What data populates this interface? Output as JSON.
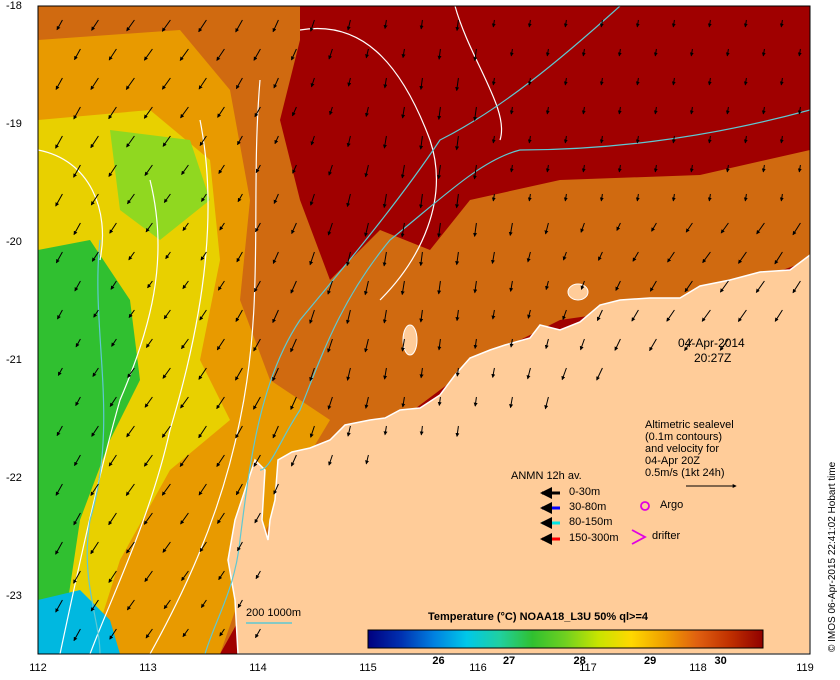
{
  "axes": {
    "lat_ticks": [
      "-18",
      "-19",
      "-20",
      "-21",
      "-22",
      "-23"
    ],
    "lon_ticks": [
      "112",
      "113",
      "114",
      "115",
      "116",
      "117",
      "118",
      "119"
    ],
    "lat_range": [
      -23.5,
      -18.0
    ],
    "lon_range": [
      112,
      119
    ]
  },
  "timestamp": {
    "date": "04-Apr-2014",
    "time": "20:27Z"
  },
  "altimetry_legend": {
    "lines": [
      "Altimetric sealevel",
      "(0.1m contours)",
      "and velocity for",
      "04-Apr 20Z",
      "0.5m/s (1kt 24h)"
    ]
  },
  "anmn_legend": {
    "title": "ANMN 12h av.",
    "entries": [
      {
        "label": "0-30m",
        "color": "#000000"
      },
      {
        "label": "30-80m",
        "color": "#0000ff"
      },
      {
        "label": "80-150m",
        "color": "#00e5e5"
      },
      {
        "label": "150-300m",
        "color": "#ff0000"
      }
    ]
  },
  "markers": {
    "argo": "Argo",
    "drifter": "drifter",
    "marker_color": "#e100e1"
  },
  "bathymetry_legend": {
    "label": "200  1000m",
    "color": "#5fc8d2"
  },
  "colorbar": {
    "title": "Temperature (°C) NOAA18_L3U 50% ql>=4",
    "ticks": [
      "26",
      "27",
      "28",
      "29",
      "30"
    ],
    "range": [
      25.0,
      30.6
    ],
    "colors": [
      "#00007f",
      "#0030b0",
      "#0080e0",
      "#00c8e8",
      "#20d0a0",
      "#30c030",
      "#70d020",
      "#c8e400",
      "#ffd800",
      "#f0a000",
      "#e06010",
      "#c03000",
      "#900000"
    ]
  },
  "credit": "© IMOS 06-Apr-2015 22:41:02 Hobart time",
  "colors": {
    "land": "#ffcc99",
    "hot_water": "#a00000",
    "bathy_contour": "#5fc8d2",
    "sealevel_contour": "#ffffff"
  }
}
